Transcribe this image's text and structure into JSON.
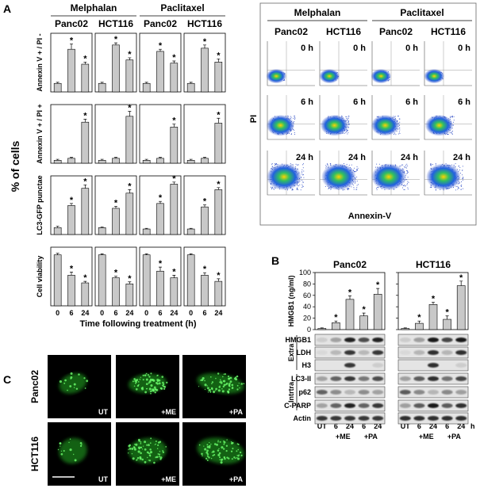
{
  "panel_a": {
    "label": "A",
    "drug_headers": [
      "Melphalan",
      "Paclitaxel"
    ],
    "cell_headers": [
      "Panc02",
      "HCT116",
      "Panc02",
      "HCT116"
    ],
    "y_title": "% of cells",
    "x_title": "Time following treatment (h)",
    "categories": [
      "0",
      "6",
      "24"
    ],
    "bar_color": "#c8c8c8",
    "rows": [
      {
        "label": "Annexin V + / PI -",
        "ylim": [
          0,
          55
        ],
        "charts": [
          {
            "values": [
              8,
              40,
              26
            ],
            "errors": [
              1,
              5,
              2
            ],
            "stars": [
              null,
              "*",
              "*"
            ]
          },
          {
            "values": [
              8,
              44,
              30
            ],
            "errors": [
              1,
              2,
              2
            ],
            "stars": [
              null,
              "*",
              "*"
            ]
          },
          {
            "values": [
              8,
              38,
              27
            ],
            "errors": [
              1,
              2,
              2
            ],
            "stars": [
              null,
              "*",
              "*"
            ]
          },
          {
            "values": [
              8,
              41,
              28
            ],
            "errors": [
              1,
              3,
              3
            ],
            "stars": [
              null,
              "*",
              "*"
            ]
          }
        ]
      },
      {
        "label": "Annexin V + / PI +",
        "ylim": [
          0,
          60
        ],
        "charts": [
          {
            "values": [
              3,
              5,
              42
            ],
            "errors": [
              1,
              1,
              3
            ],
            "stars": [
              null,
              null,
              "*"
            ]
          },
          {
            "values": [
              3,
              5,
              48
            ],
            "errors": [
              1,
              1,
              5
            ],
            "stars": [
              null,
              null,
              "*"
            ]
          },
          {
            "values": [
              3,
              5,
              37
            ],
            "errors": [
              1,
              1,
              3
            ],
            "stars": [
              null,
              null,
              "*"
            ]
          },
          {
            "values": [
              3,
              5,
              41
            ],
            "errors": [
              1,
              1,
              5
            ],
            "stars": [
              null,
              null,
              "*"
            ]
          }
        ]
      },
      {
        "label": "LC3-GFP punctae",
        "ylim": [
          0,
          85
        ],
        "charts": [
          {
            "values": [
              10,
              42,
              67
            ],
            "errors": [
              2,
              3,
              5
            ],
            "stars": [
              null,
              "*",
              "*"
            ]
          },
          {
            "values": [
              10,
              38,
              60
            ],
            "errors": [
              1,
              3,
              5
            ],
            "stars": [
              null,
              "*",
              "*"
            ]
          },
          {
            "values": [
              8,
              45,
              73
            ],
            "errors": [
              1,
              3,
              3
            ],
            "stars": [
              null,
              "*",
              "*"
            ]
          },
          {
            "values": [
              8,
              40,
              65
            ],
            "errors": [
              1,
              3,
              3
            ],
            "stars": [
              null,
              "*",
              "*"
            ]
          }
        ]
      },
      {
        "label": "Cell viability",
        "ylim": [
          0,
          115
        ],
        "charts": [
          {
            "values": [
              100,
              60,
              45
            ],
            "errors": [
              3,
              6,
              3
            ],
            "stars": [
              null,
              "*",
              "*"
            ]
          },
          {
            "values": [
              100,
              55,
              43
            ],
            "errors": [
              2,
              3,
              4
            ],
            "stars": [
              null,
              "*",
              "*"
            ]
          },
          {
            "values": [
              100,
              68,
              55
            ],
            "errors": [
              2,
              8,
              5
            ],
            "stars": [
              null,
              "*",
              "*"
            ]
          },
          {
            "values": [
              100,
              60,
              48
            ],
            "errors": [
              2,
              5,
              5
            ],
            "stars": [
              null,
              "*",
              "*"
            ]
          }
        ]
      }
    ],
    "flow": {
      "drug_headers": [
        "Melphalan",
        "Paclitaxel"
      ],
      "cell_headers": [
        "Panc02",
        "HCT116",
        "Panc02",
        "HCT116"
      ],
      "times": [
        "0 h",
        "6 h",
        "24 h"
      ],
      "x_title": "Annexin-V",
      "y_title": "PI"
    }
  },
  "panel_b": {
    "label": "B",
    "y_title": "HMGB1 (ng/ml)",
    "ylim": [
      0,
      100
    ],
    "yticks": [
      0,
      20,
      40,
      60,
      80,
      100
    ],
    "categories": [
      "UT",
      "6",
      "24",
      "6",
      "24"
    ],
    "groups": [
      "+ME",
      "+PA"
    ],
    "unit": "h",
    "bar_color": "#c8c8c8",
    "charts": [
      {
        "title": "Panc02",
        "values": [
          2,
          12,
          53,
          24,
          62
        ],
        "errors": [
          1,
          3,
          6,
          5,
          10
        ],
        "stars": [
          null,
          "*",
          "*",
          "*",
          "*"
        ]
      },
      {
        "title": "HCT116",
        "values": [
          2,
          11,
          44,
          18,
          77
        ],
        "errors": [
          1,
          4,
          4,
          6,
          8
        ],
        "stars": [
          null,
          "*",
          "*",
          "*",
          "*"
        ]
      }
    ],
    "blot": {
      "extra_label": "Extra",
      "intra_label": "Intrtra",
      "extra_rows": [
        "HMGB1",
        "LDH",
        "H3"
      ],
      "intra_rows": [
        "LC3-II",
        "p62",
        "C-PARP"
      ],
      "loading": "Actin"
    }
  },
  "panel_c": {
    "label": "C",
    "rows": [
      "Panc02",
      "HCT116"
    ],
    "conditions": [
      "UT",
      "+ME",
      "+PA"
    ]
  }
}
